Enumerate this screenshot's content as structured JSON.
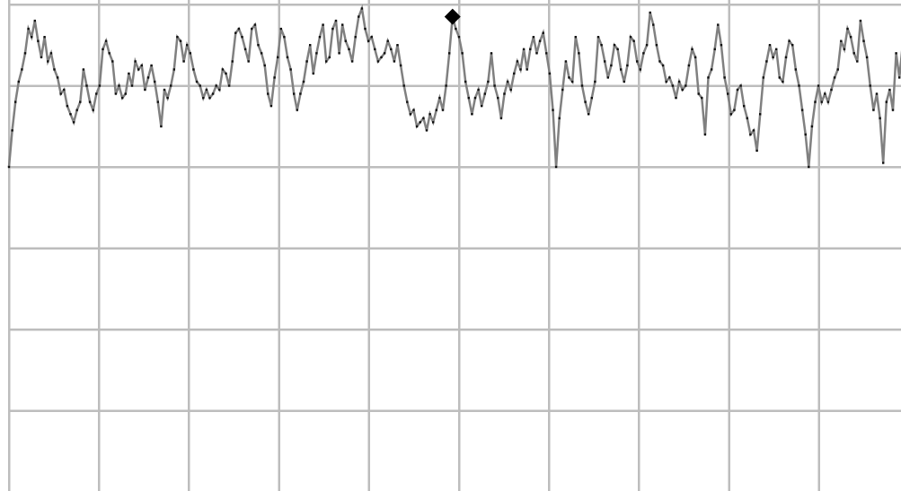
{
  "chart_data": {
    "type": "line",
    "title": "",
    "xlabel": "",
    "ylabel": "",
    "grid": true,
    "x_grid_count": 10,
    "y_grid_count": 6,
    "xlim": [
      0,
      300
    ],
    "ylim": [
      -5,
      1
    ],
    "marker_index": 137,
    "series": [
      {
        "color": "#808080",
        "values": [
          -1.0,
          -0.55,
          -0.2,
          0.05,
          0.2,
          0.4,
          0.7,
          0.6,
          0.8,
          0.55,
          0.35,
          0.6,
          0.3,
          0.4,
          0.2,
          0.1,
          -0.1,
          -0.05,
          -0.25,
          -0.35,
          -0.45,
          -0.3,
          -0.2,
          0.2,
          0.0,
          -0.2,
          -0.3,
          -0.1,
          0.0,
          0.45,
          0.55,
          0.4,
          0.3,
          -0.1,
          0.0,
          -0.15,
          -0.1,
          0.15,
          0.0,
          0.3,
          0.2,
          0.25,
          -0.05,
          0.1,
          0.25,
          0.05,
          -0.2,
          -0.5,
          -0.05,
          -0.15,
          0.0,
          0.2,
          0.6,
          0.55,
          0.3,
          0.5,
          0.4,
          0.2,
          0.05,
          0.0,
          -0.15,
          -0.05,
          -0.15,
          -0.1,
          0.0,
          -0.05,
          0.2,
          0.15,
          0.0,
          0.3,
          0.65,
          0.7,
          0.6,
          0.45,
          0.3,
          0.7,
          0.75,
          0.5,
          0.4,
          0.25,
          -0.1,
          -0.25,
          0.1,
          0.35,
          0.7,
          0.6,
          0.35,
          0.2,
          -0.1,
          -0.3,
          -0.1,
          0.05,
          0.3,
          0.5,
          0.15,
          0.4,
          0.6,
          0.75,
          0.3,
          0.35,
          0.7,
          0.8,
          0.4,
          0.75,
          0.55,
          0.45,
          0.3,
          0.6,
          0.85,
          0.95,
          0.7,
          0.55,
          0.6,
          0.45,
          0.3,
          0.35,
          0.4,
          0.55,
          0.45,
          0.3,
          0.5,
          0.25,
          0.0,
          -0.2,
          -0.35,
          -0.3,
          -0.5,
          -0.45,
          -0.4,
          -0.55,
          -0.35,
          -0.45,
          -0.3,
          -0.15,
          -0.3,
          0.0,
          0.4,
          0.85,
          0.7,
          0.6,
          0.4,
          0.05,
          -0.15,
          -0.35,
          -0.15,
          -0.05,
          -0.25,
          -0.1,
          0.05,
          0.4,
          0.0,
          -0.15,
          -0.4,
          -0.1,
          0.05,
          -0.05,
          0.15,
          0.3,
          0.2,
          0.45,
          0.2,
          0.45,
          0.6,
          0.4,
          0.55,
          0.65,
          0.4,
          0.15,
          -0.3,
          -1.0,
          -0.4,
          -0.05,
          0.3,
          0.1,
          0.05,
          0.6,
          0.4,
          0.0,
          -0.2,
          -0.35,
          -0.15,
          0.05,
          0.6,
          0.5,
          0.3,
          0.1,
          0.25,
          0.5,
          0.45,
          0.2,
          0.05,
          0.25,
          0.6,
          0.55,
          0.3,
          0.2,
          0.4,
          0.5,
          0.9,
          0.75,
          0.5,
          0.3,
          0.25,
          0.05,
          0.1,
          0.0,
          -0.15,
          0.05,
          -0.05,
          0.0,
          0.25,
          0.45,
          0.35,
          -0.1,
          -0.15,
          -0.6,
          0.1,
          0.2,
          0.45,
          0.75,
          0.5,
          0.1,
          -0.1,
          -0.35,
          -0.3,
          -0.05,
          0.0,
          -0.25,
          -0.4,
          -0.6,
          -0.55,
          -0.8,
          -0.35,
          0.1,
          0.3,
          0.5,
          0.35,
          0.45,
          0.1,
          0.05,
          0.35,
          0.55,
          0.5,
          0.2,
          0.0,
          -0.3,
          -0.6,
          -1.0,
          -0.5,
          -0.2,
          0.0,
          -0.2,
          -0.1,
          -0.2,
          -0.05,
          0.1,
          0.2,
          0.55,
          0.45,
          0.7,
          0.6,
          0.4,
          0.3,
          0.8,
          0.55,
          0.35,
          0.0,
          -0.3,
          -0.1,
          -0.4,
          -0.95,
          -0.2,
          -0.05,
          -0.3,
          0.4,
          0.1,
          0.5,
          0.05,
          0.0
        ]
      }
    ]
  }
}
